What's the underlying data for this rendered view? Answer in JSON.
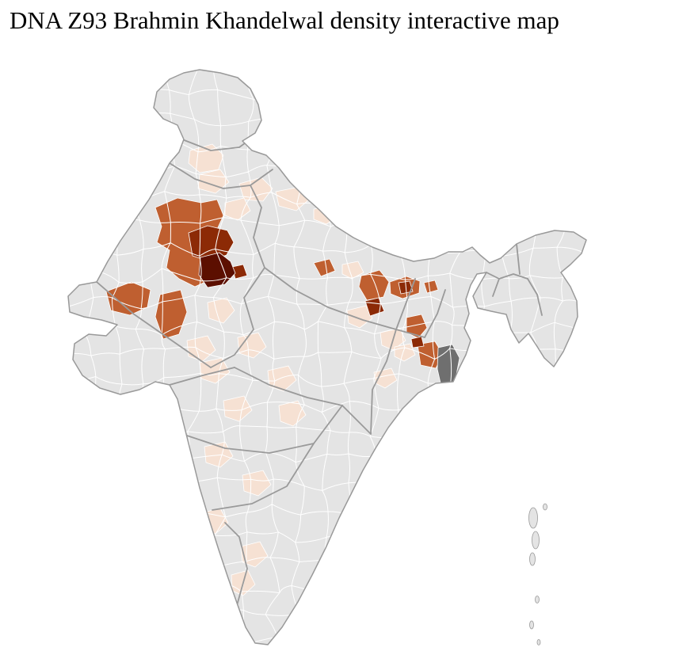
{
  "title": "DNA Z93 Brahmin Khandelwal density interactive map",
  "map": {
    "region": "India district choropleth",
    "colors": {
      "background": "#ffffff",
      "land": "#e4e4e4",
      "district_border": "#ffffff",
      "state_border": "#9a9a9a",
      "outline": "#999999",
      "density_low": "#f6e1d3",
      "density_mid": "#bf5f30",
      "density_high": "#8c2a06",
      "density_highest": "#5c0f00",
      "urban": "#6f6f6f"
    },
    "density_scale": [
      {
        "level": "none",
        "color": "#e4e4e4"
      },
      {
        "level": "low",
        "color": "#f6e1d3"
      },
      {
        "level": "medium",
        "color": "#bf5f30"
      },
      {
        "level": "high",
        "color": "#8c2a06"
      },
      {
        "level": "highest",
        "color": "#5c0f00"
      }
    ]
  }
}
